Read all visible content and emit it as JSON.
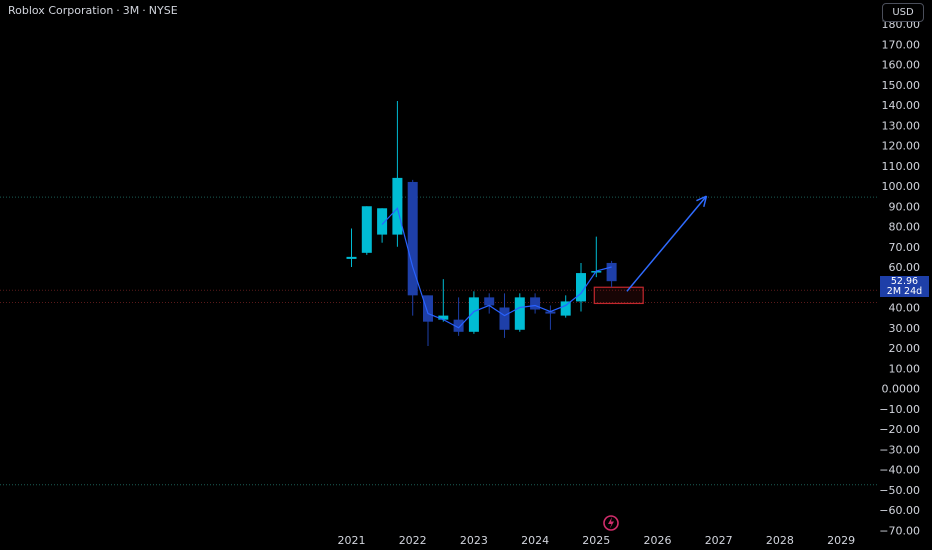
{
  "header": {
    "symbol": "Roblox Corporation",
    "interval": "3M",
    "exchange": "NYSE",
    "separator": "·"
  },
  "currency_button": "USD",
  "last_price": {
    "value": "52.96",
    "countdown": "2M 24d"
  },
  "colors": {
    "background": "#000000",
    "up_candle": "#00bcd4",
    "down_candle": "#1e3fa8",
    "line": "#2962ff",
    "zone_border": "#c2272d",
    "dotted_green": "#1b5e55",
    "dotted_red": "#5a1a1a",
    "arrow": "#2f6bff",
    "logo_ring": "#d12d6b"
  },
  "chart_data": {
    "type": "candlestick",
    "ylim": [
      -70,
      180
    ],
    "y_ticks": [
      "180.00",
      "170.00",
      "160.00",
      "150.00",
      "140.00",
      "130.00",
      "120.00",
      "110.00",
      "100.00",
      "90.00",
      "80.00",
      "70.00",
      "60.00",
      "50.00",
      "40.00",
      "30.00",
      "20.00",
      "10.00",
      "0.0000",
      "−10.00",
      "−20.00",
      "−30.00",
      "−40.00",
      "−50.00",
      "−60.00",
      "−70.00"
    ],
    "y_tick_values": [
      180,
      170,
      160,
      150,
      140,
      130,
      120,
      110,
      100,
      90,
      80,
      70,
      60,
      50,
      40,
      30,
      20,
      10,
      0,
      -10,
      -20,
      -30,
      -40,
      -50,
      -60,
      -70
    ],
    "x_labels": [
      "2021",
      "2022",
      "2023",
      "2024",
      "2025",
      "2026",
      "2027",
      "2028",
      "2029"
    ],
    "x_label_positions": [
      2021,
      2022,
      2023,
      2024,
      2025,
      2026,
      2027,
      2028,
      2029
    ],
    "candles": [
      {
        "t": 2021.0,
        "o": 64,
        "h": 79,
        "l": 60,
        "c": 65
      },
      {
        "t": 2021.25,
        "o": 67,
        "h": 90,
        "l": 66,
        "c": 90
      },
      {
        "t": 2021.5,
        "o": 76,
        "h": 89,
        "l": 72,
        "c": 89
      },
      {
        "t": 2021.75,
        "o": 76,
        "h": 142,
        "l": 70,
        "c": 104
      },
      {
        "t": 2022.0,
        "o": 102,
        "h": 103,
        "l": 36,
        "c": 46
      },
      {
        "t": 2022.25,
        "o": 46,
        "h": 46,
        "l": 21,
        "c": 33
      },
      {
        "t": 2022.5,
        "o": 34,
        "h": 54,
        "l": 33,
        "c": 36
      },
      {
        "t": 2022.75,
        "o": 34,
        "h": 45,
        "l": 26,
        "c": 28
      },
      {
        "t": 2023.0,
        "o": 28,
        "h": 48,
        "l": 27,
        "c": 45
      },
      {
        "t": 2023.25,
        "o": 45,
        "h": 47,
        "l": 37,
        "c": 41
      },
      {
        "t": 2023.5,
        "o": 40,
        "h": 47,
        "l": 25,
        "c": 29
      },
      {
        "t": 2023.75,
        "o": 29,
        "h": 47,
        "l": 28,
        "c": 45
      },
      {
        "t": 2024.0,
        "o": 45,
        "h": 47,
        "l": 37,
        "c": 39
      },
      {
        "t": 2024.25,
        "o": 38,
        "h": 41,
        "l": 29,
        "c": 37
      },
      {
        "t": 2024.5,
        "o": 36,
        "h": 46,
        "l": 35,
        "c": 43
      },
      {
        "t": 2024.75,
        "o": 43,
        "h": 62,
        "l": 38,
        "c": 57
      },
      {
        "t": 2025.0,
        "o": 58,
        "h": 75,
        "l": 55,
        "c": 58
      },
      {
        "t": 2025.25,
        "o": 62,
        "h": 63,
        "l": 50,
        "c": 53
      }
    ],
    "ma_line": [
      [
        2021.5,
        81
      ],
      [
        2021.75,
        89
      ],
      [
        2022.0,
        60
      ],
      [
        2022.25,
        37
      ],
      [
        2022.5,
        34
      ],
      [
        2022.75,
        30
      ],
      [
        2023.0,
        38
      ],
      [
        2023.25,
        41
      ],
      [
        2023.5,
        36
      ],
      [
        2023.75,
        40
      ],
      [
        2024.0,
        41
      ],
      [
        2024.25,
        38
      ],
      [
        2024.5,
        41
      ],
      [
        2024.75,
        47
      ],
      [
        2025.0,
        58
      ],
      [
        2025.25,
        60
      ]
    ],
    "levels": [
      {
        "price": 94.5,
        "style": "green-dotted"
      },
      {
        "price": 48.5,
        "style": "red-dotted"
      },
      {
        "price": 42.5,
        "style": "red-dotted"
      },
      {
        "price": -47.5,
        "style": "green-dotted"
      }
    ],
    "zone": {
      "t0": 2025.0,
      "t1": 2025.75,
      "p_low": 42,
      "p_high": 50
    },
    "arrow": {
      "from": [
        2025.5,
        48
      ],
      "to": [
        2026.8,
        95
      ]
    }
  }
}
